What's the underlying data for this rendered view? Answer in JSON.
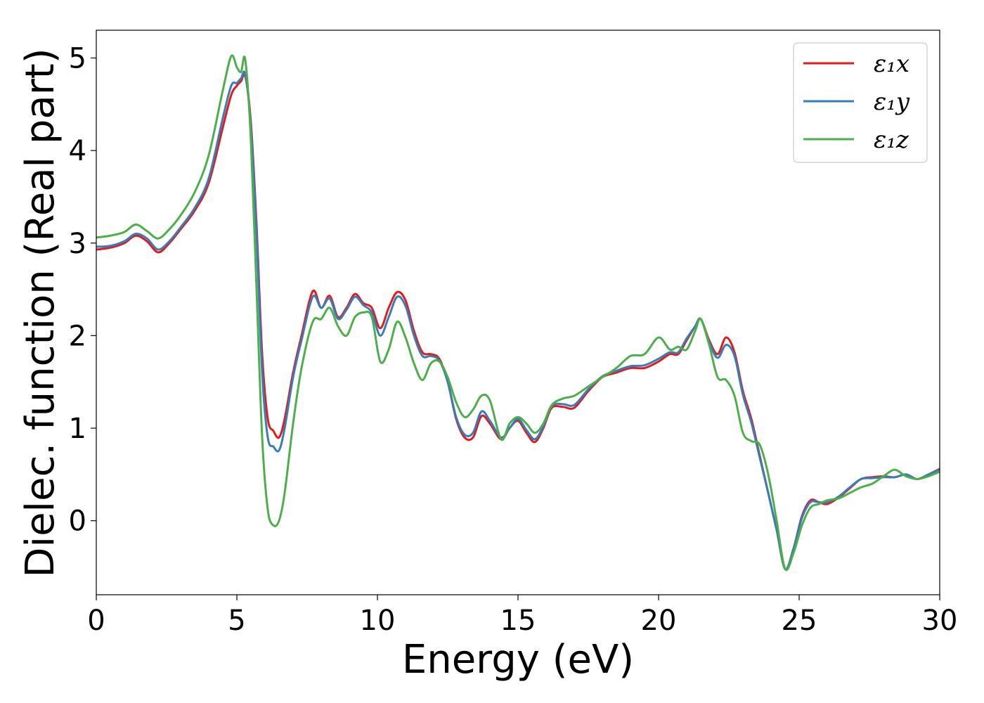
{
  "chart_data": {
    "type": "line",
    "xlabel": "Energy (eV)",
    "ylabel": "Dielec. function (Real part)",
    "xlim": [
      0,
      30
    ],
    "ylim": [
      -0.8,
      5.3
    ],
    "xticks": [
      0,
      5,
      10,
      15,
      20,
      25,
      30
    ],
    "yticks": [
      0,
      1,
      2,
      3,
      4,
      5
    ],
    "grid": false,
    "legend_position": "top-right",
    "x": [
      0,
      0.5,
      1,
      1.4,
      1.8,
      2.2,
      2.6,
      3,
      3.5,
      4,
      4.5,
      4.8,
      5.0,
      5.15,
      5.3,
      5.5,
      5.7,
      5.9,
      6.1,
      6.3,
      6.5,
      6.7,
      7,
      7.3,
      7.7,
      8.0,
      8.3,
      8.6,
      8.9,
      9.2,
      9.5,
      9.8,
      10.1,
      10.4,
      10.7,
      11.0,
      11.3,
      11.6,
      11.9,
      12.2,
      12.5,
      12.8,
      13.1,
      13.4,
      13.7,
      14.0,
      14.4,
      14.7,
      15.0,
      15.3,
      15.6,
      15.9,
      16.2,
      16.6,
      17.0,
      17.5,
      18.0,
      18.5,
      19.0,
      19.5,
      20.0,
      20.4,
      20.7,
      21.0,
      21.3,
      21.5,
      21.8,
      22.1,
      22.4,
      22.7,
      23.0,
      23.3,
      23.6,
      23.9,
      24.2,
      24.5,
      24.8,
      25.1,
      25.4,
      25.7,
      26.0,
      26.4,
      26.8,
      27.2,
      27.6,
      28.0,
      28.4,
      28.8,
      29.2,
      29.6,
      30
    ],
    "series": [
      {
        "name": "ε₁x",
        "color": "#e41a1c",
        "values": [
          2.93,
          2.95,
          3.0,
          3.08,
          3.02,
          2.9,
          3.0,
          3.15,
          3.35,
          3.65,
          4.25,
          4.6,
          4.7,
          4.75,
          4.8,
          4.3,
          3.2,
          1.8,
          1.1,
          0.97,
          0.9,
          1.1,
          1.6,
          2.0,
          2.48,
          2.3,
          2.43,
          2.2,
          2.3,
          2.45,
          2.35,
          2.3,
          2.08,
          2.3,
          2.47,
          2.38,
          2.05,
          1.82,
          1.8,
          1.75,
          1.5,
          1.1,
          0.9,
          0.9,
          1.13,
          1.05,
          0.88,
          1.0,
          1.08,
          0.95,
          0.85,
          1.0,
          1.22,
          1.23,
          1.22,
          1.4,
          1.55,
          1.6,
          1.65,
          1.65,
          1.72,
          1.8,
          1.8,
          1.95,
          2.1,
          2.18,
          1.95,
          1.8,
          1.98,
          1.82,
          1.4,
          1.1,
          0.7,
          0.3,
          -0.1,
          -0.52,
          -0.3,
          0.05,
          0.22,
          0.2,
          0.18,
          0.25,
          0.35,
          0.45,
          0.47,
          0.48,
          0.47,
          0.5,
          0.45,
          0.5,
          0.56
        ]
      },
      {
        "name": "ε₁y",
        "color": "#377eb8",
        "values": [
          2.96,
          2.97,
          3.02,
          3.1,
          3.05,
          2.93,
          3.02,
          3.17,
          3.38,
          3.7,
          4.35,
          4.7,
          4.73,
          4.78,
          4.82,
          4.25,
          3.1,
          1.6,
          0.9,
          0.8,
          0.76,
          1.0,
          1.55,
          1.95,
          2.42,
          2.3,
          2.4,
          2.18,
          2.28,
          2.42,
          2.33,
          2.25,
          2.0,
          2.2,
          2.42,
          2.32,
          2.0,
          1.78,
          1.78,
          1.73,
          1.5,
          1.12,
          0.93,
          0.95,
          1.18,
          1.08,
          0.9,
          1.0,
          1.1,
          0.98,
          0.88,
          1.02,
          1.24,
          1.26,
          1.25,
          1.42,
          1.56,
          1.62,
          1.67,
          1.68,
          1.75,
          1.82,
          1.82,
          1.97,
          2.1,
          2.18,
          1.93,
          1.76,
          1.9,
          1.78,
          1.36,
          1.06,
          0.68,
          0.3,
          -0.1,
          -0.52,
          -0.3,
          0.03,
          0.2,
          0.2,
          0.2,
          0.26,
          0.36,
          0.45,
          0.46,
          0.47,
          0.47,
          0.5,
          0.45,
          0.5,
          0.55
        ]
      },
      {
        "name": "ε₁z",
        "color": "#4daf4a",
        "values": [
          3.06,
          3.08,
          3.12,
          3.2,
          3.13,
          3.05,
          3.15,
          3.3,
          3.55,
          3.95,
          4.65,
          5.02,
          4.9,
          4.85,
          4.98,
          4.1,
          2.5,
          0.9,
          0.12,
          -0.05,
          0.0,
          0.3,
          1.05,
          1.65,
          2.15,
          2.18,
          2.3,
          2.1,
          2.0,
          2.2,
          2.25,
          2.2,
          1.72,
          1.85,
          2.15,
          1.98,
          1.7,
          1.52,
          1.7,
          1.72,
          1.55,
          1.28,
          1.12,
          1.2,
          1.35,
          1.3,
          0.88,
          1.05,
          1.12,
          1.05,
          0.95,
          1.05,
          1.25,
          1.32,
          1.35,
          1.45,
          1.55,
          1.65,
          1.78,
          1.8,
          1.98,
          1.85,
          1.88,
          1.85,
          2.05,
          2.18,
          1.9,
          1.55,
          1.52,
          1.35,
          0.95,
          0.86,
          0.82,
          0.5,
          0.0,
          -0.52,
          -0.35,
          -0.05,
          0.14,
          0.18,
          0.22,
          0.24,
          0.3,
          0.36,
          0.4,
          0.48,
          0.55,
          0.48,
          0.45,
          0.48,
          0.53
        ]
      }
    ]
  }
}
